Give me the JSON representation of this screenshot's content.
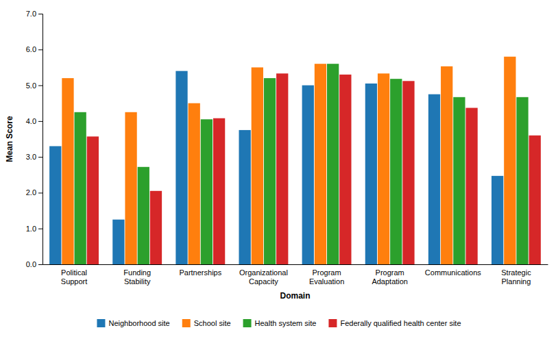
{
  "chart_data": {
    "type": "bar",
    "xlabel": "Domain",
    "ylabel": "Mean Score",
    "categories": [
      "Political\nSupport",
      "Funding\nStability",
      "Partnerships",
      "Organizational\nCapacity",
      "Program\nEvaluation",
      "Program\nAdaptation",
      "Communications",
      "Strategic\nPlanning"
    ],
    "series": [
      {
        "name": "Neighborhood site",
        "values": [
          3.3,
          1.25,
          5.4,
          3.75,
          5.0,
          5.05,
          4.75,
          2.47
        ]
      },
      {
        "name": "School site",
        "values": [
          5.2,
          4.25,
          4.5,
          5.5,
          5.6,
          5.33,
          5.53,
          5.8
        ]
      },
      {
        "name": "Health system site",
        "values": [
          4.25,
          2.72,
          4.05,
          5.2,
          5.6,
          5.18,
          4.67,
          4.67
        ]
      },
      {
        "name": "Federally qualified health center site",
        "values": [
          3.57,
          2.05,
          4.08,
          5.33,
          5.3,
          5.12,
          4.37,
          3.6
        ]
      }
    ],
    "ylim": [
      0.0,
      7.0
    ],
    "yticks": [
      {
        "value": 0.0,
        "label": "0.0"
      },
      {
        "value": 1.0,
        "label": "1.0"
      },
      {
        "value": 2.0,
        "label": "2.0"
      },
      {
        "value": 3.0,
        "label": "3.0"
      },
      {
        "value": 4.0,
        "label": "4.0"
      },
      {
        "value": 5.0,
        "label": "5.0"
      },
      {
        "value": 6.0,
        "label": "6.0"
      },
      {
        "value": 7.0,
        "label": "7.0"
      }
    ],
    "grid": false,
    "legend": "bottom"
  }
}
